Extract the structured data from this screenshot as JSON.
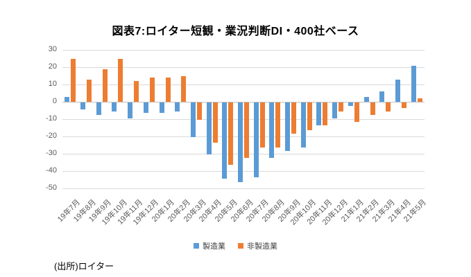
{
  "title": "図表7:ロイター短観・業況判断DI・400社ベース",
  "source_note": "(出所)ロイター",
  "legend": [
    {
      "label": "製造業",
      "color": "#5b9bd5"
    },
    {
      "label": "非製造業",
      "color": "#ed7d31"
    }
  ],
  "colors": {
    "gridline": "#d9d9d9",
    "axis_line": "#bfbfbf",
    "tick_label": "#595959",
    "manufacturing": "#5b9bd5",
    "non_manufacturing": "#ed7d31"
  },
  "chart_data": {
    "type": "bar",
    "title": "図表7:ロイター短観・業況判断DI・400社ベース",
    "categories": [
      "19年7月",
      "19年8月",
      "19年9月",
      "19年10月",
      "19年11月",
      "19年12月",
      "20年1月",
      "20年2月",
      "20年3月",
      "20年4月",
      "20年5月",
      "20年6月",
      "20年7月",
      "20年8月",
      "20年9月",
      "20年10月",
      "20年11月",
      "20年12月",
      "21年1月",
      "21年2月",
      "21年3月",
      "21年4月",
      "21年5月"
    ],
    "series": [
      {
        "name": "製造業",
        "color": "#5b9bd5",
        "values": [
          3,
          -4,
          -7,
          -5,
          -9,
          -6,
          -6,
          -5,
          -20,
          -30,
          -44,
          -46,
          -43,
          -32,
          -28,
          -26,
          -13,
          -9,
          -2,
          3,
          6,
          13,
          21
        ]
      },
      {
        "name": "非製造業",
        "color": "#ed7d31",
        "values": [
          25,
          13,
          19,
          25,
          12,
          14,
          14,
          15,
          -10,
          -23,
          -36,
          -32,
          -26,
          -26,
          -18,
          -16,
          -13,
          -5,
          -11,
          -7,
          -5,
          -3,
          2
        ]
      }
    ],
    "xlabel": "",
    "ylabel": "",
    "ylim": [
      -50,
      30
    ],
    "yticks": [
      30,
      20,
      10,
      0,
      -10,
      -20,
      -30,
      -40,
      -50
    ],
    "grid": true,
    "legend_position": "bottom"
  }
}
